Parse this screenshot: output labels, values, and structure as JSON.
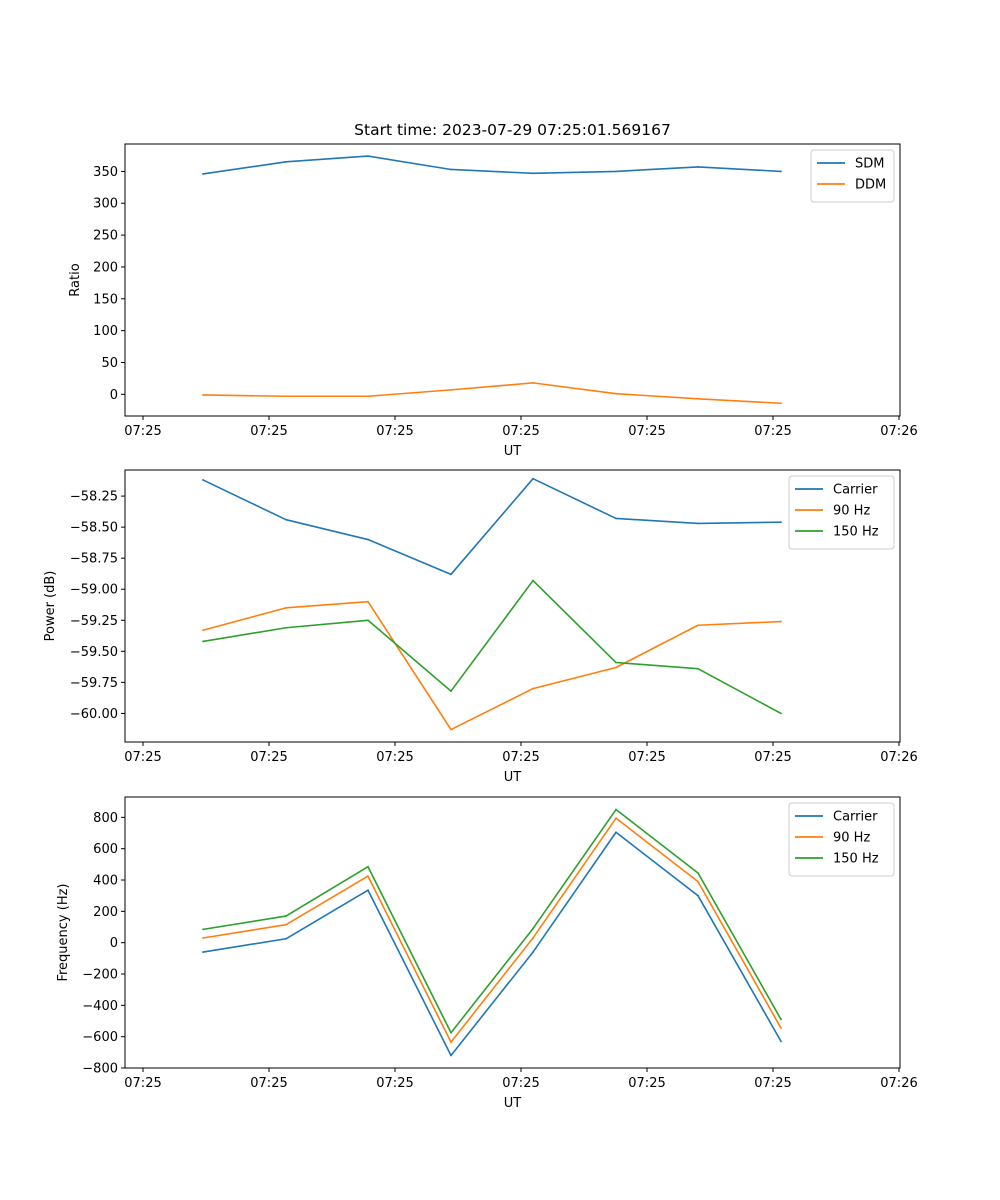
{
  "figure_title": "Start time: 2023-07-29 07:25:01.569167",
  "colors": {
    "blue": "#1f77b4",
    "orange": "#ff7f0e",
    "green": "#2ca02c"
  },
  "chart_data": [
    {
      "type": "line",
      "title": "Start time: 2023-07-29 07:25:01.569167",
      "xlabel": "UT",
      "ylabel": "Ratio",
      "x_ticks": [
        "07:25",
        "07:25",
        "07:25",
        "07:25",
        "07:25",
        "07:25",
        "07:26"
      ],
      "y_ticks": [
        "0",
        "50",
        "100",
        "150",
        "200",
        "250",
        "300",
        "350"
      ],
      "ylim": [
        -34,
        393
      ],
      "legend_position": "top-right",
      "series": [
        {
          "name": "SDM",
          "color": "#1f77b4",
          "values": [
            346,
            365,
            374,
            353,
            347,
            350,
            357,
            350
          ]
        },
        {
          "name": "DDM",
          "color": "#ff7f0e",
          "values": [
            -1,
            -3,
            -3,
            7,
            18,
            1,
            -7,
            -14
          ]
        }
      ]
    },
    {
      "type": "line",
      "title": "",
      "xlabel": "UT",
      "ylabel": "Power (dB)",
      "x_ticks": [
        "07:25",
        "07:25",
        "07:25",
        "07:25",
        "07:25",
        "07:25",
        "07:26"
      ],
      "y_ticks": [
        "−58.25",
        "−58.50",
        "−58.75",
        "−59.00",
        "−59.25",
        "−59.50",
        "−59.75",
        "−60.00"
      ],
      "y_tick_values": [
        -58.25,
        -58.5,
        -58.75,
        -59.0,
        -59.25,
        -59.5,
        -59.75,
        -60.0
      ],
      "ylim": [
        -60.23,
        -58.04
      ],
      "legend_position": "top-right",
      "series": [
        {
          "name": "Carrier",
          "color": "#1f77b4",
          "values": [
            -58.12,
            -58.44,
            -58.6,
            -58.88,
            -58.11,
            -58.43,
            -58.47,
            -58.46
          ]
        },
        {
          "name": "90 Hz",
          "color": "#ff7f0e",
          "values": [
            -59.33,
            -59.15,
            -59.1,
            -60.13,
            -59.8,
            -59.63,
            -59.29,
            -59.26
          ]
        },
        {
          "name": "150 Hz",
          "color": "#2ca02c",
          "values": [
            -59.42,
            -59.31,
            -59.25,
            -59.82,
            -58.93,
            -59.59,
            -59.64,
            -60.0
          ]
        }
      ]
    },
    {
      "type": "line",
      "title": "",
      "xlabel": "UT",
      "ylabel": "Frequency (Hz)",
      "x_ticks": [
        "07:25",
        "07:25",
        "07:25",
        "07:25",
        "07:25",
        "07:25",
        "07:26"
      ],
      "y_ticks": [
        "−800",
        "−600",
        "−400",
        "−200",
        "0",
        "200",
        "400",
        "600",
        "800"
      ],
      "y_tick_values": [
        -800,
        -600,
        -400,
        -200,
        0,
        200,
        400,
        600,
        800
      ],
      "ylim": [
        -800,
        930
      ],
      "legend_position": "top-right",
      "series": [
        {
          "name": "Carrier",
          "color": "#1f77b4",
          "values": [
            -60,
            25,
            335,
            -720,
            -60,
            705,
            300,
            -630
          ]
        },
        {
          "name": "90 Hz",
          "color": "#ff7f0e",
          "values": [
            30,
            115,
            425,
            -635,
            30,
            795,
            390,
            -545
          ]
        },
        {
          "name": "150 Hz",
          "color": "#2ca02c",
          "values": [
            85,
            170,
            485,
            -575,
            90,
            850,
            445,
            -490
          ]
        }
      ]
    }
  ]
}
